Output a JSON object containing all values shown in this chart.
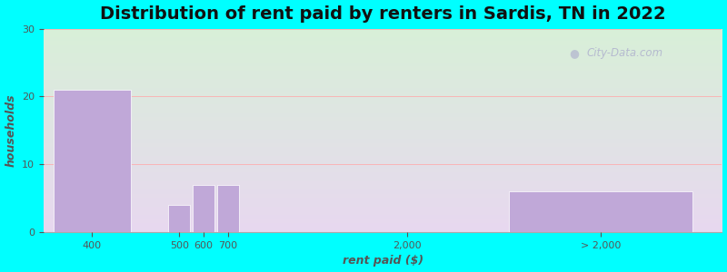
{
  "title": "Distribution of rent paid by renters in Sardis, TN in 2022",
  "xlabel": "rent paid ($)",
  "ylabel": "households",
  "background_outer": "#00FFFF",
  "background_inner_top": "#d8f0d8",
  "background_inner_bottom": "#e8d8f0",
  "bar_color": "#c0a8d8",
  "bar_edge_color": "#c0a8d8",
  "ylim": [
    0,
    30
  ],
  "yticks": [
    0,
    10,
    20,
    30
  ],
  "categories": [
    "400",
    "500",
    "600",
    "700",
    "2,000",
    "> 2,000"
  ],
  "values": [
    21,
    4,
    7,
    7,
    0,
    6
  ],
  "x_positions": [
    1.0,
    2.8,
    3.3,
    3.8,
    7.5,
    11.5
  ],
  "bar_widths": [
    1.6,
    0.45,
    0.45,
    0.45,
    0.1,
    3.8
  ],
  "xtick_positions": [
    1.0,
    2.8,
    3.3,
    3.8,
    7.5,
    11.5
  ],
  "xtick_labels": [
    "400",
    "500",
    "600",
    "700",
    "2,000",
    "> 2,000"
  ],
  "xlim": [
    0,
    14
  ],
  "title_fontsize": 14,
  "axis_label_fontsize": 9,
  "tick_fontsize": 8,
  "watermark": "City-Data.com"
}
